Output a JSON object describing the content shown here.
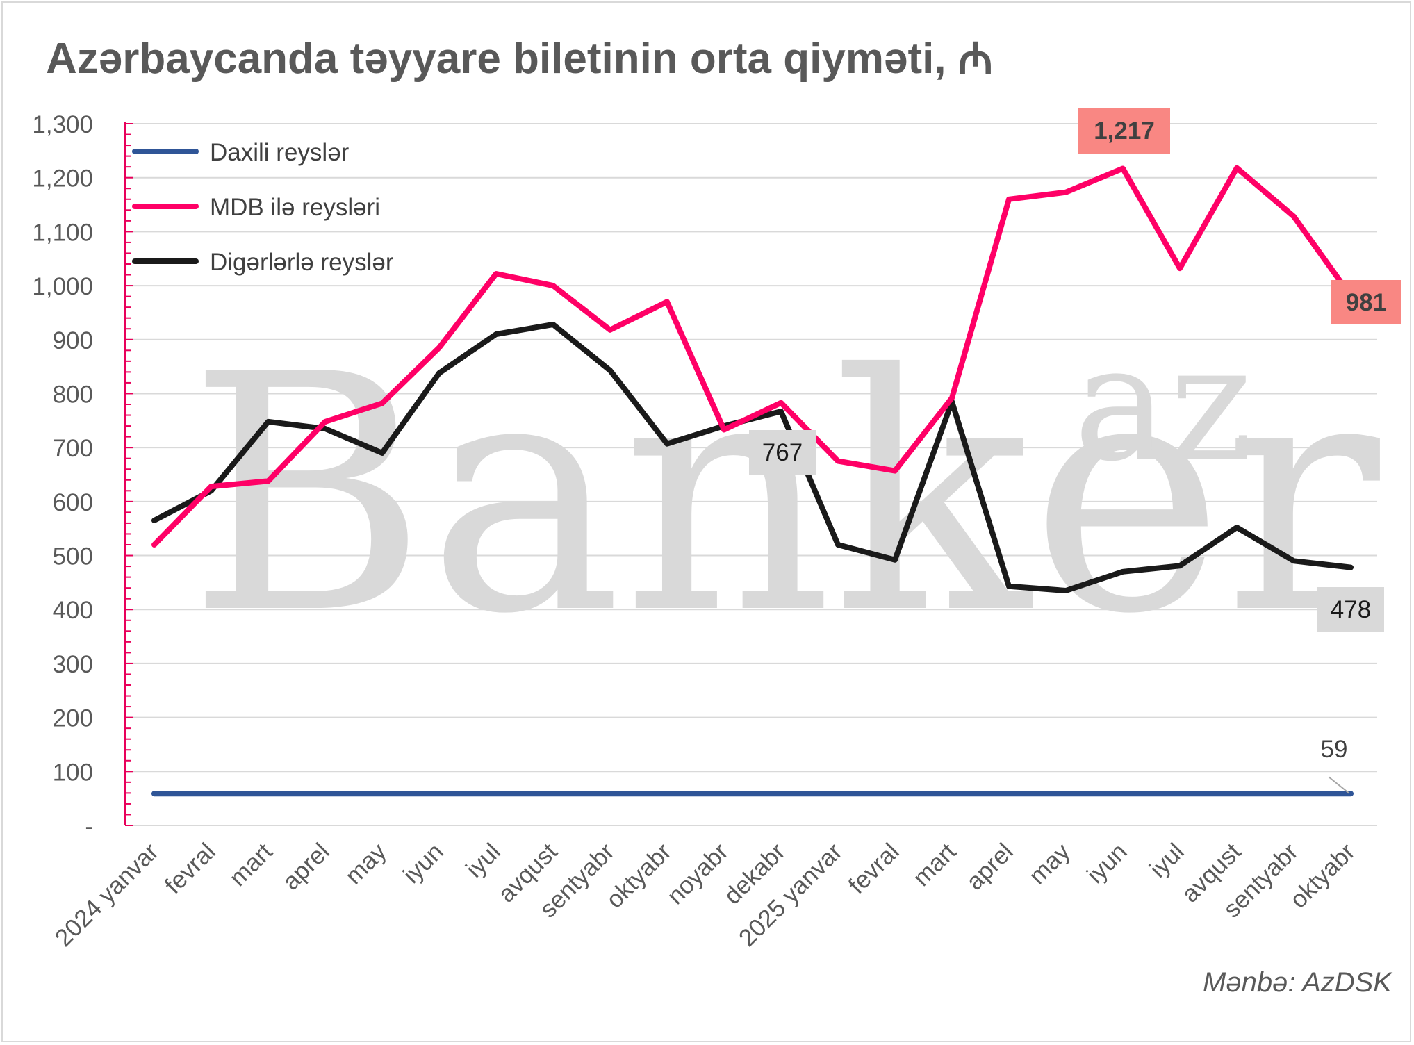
{
  "title": "Azərbaycanda təyyare biletinin orta qiyməti, ₼",
  "source": "Mənbə: AzDSK",
  "watermark": "Banker",
  "watermark_sup": "az",
  "colors": {
    "daxili": "#2f5597",
    "mdb": "#ff0066",
    "diger": "#1a1a1a",
    "axis_pink": "#e8005a",
    "grid": "#d9d9d9",
    "label_pink_bg": "#f98783",
    "label_gray_bg": "#d9d9d9"
  },
  "chart_data": {
    "type": "line",
    "categories": [
      "2024 yanvar",
      "fevral",
      "mart",
      "aprel",
      "may",
      "iyun",
      "iyul",
      "avqust",
      "sentyabr",
      "oktyabr",
      "noyabr",
      "dekabr",
      "2025 yanvar",
      "fevral",
      "mart",
      "aprel",
      "may",
      "iyun",
      "iyul",
      "avqust",
      "sentyabr",
      "oktyabr"
    ],
    "ylim": [
      0,
      1300
    ],
    "yticks": [
      0,
      100,
      200,
      300,
      400,
      500,
      600,
      700,
      800,
      900,
      1000,
      1100,
      1200,
      1300
    ],
    "ytick_labels": [
      "-",
      "100",
      "200",
      "300",
      "400",
      "500",
      "600",
      "700",
      "800",
      "900",
      "1,000",
      "1,100",
      "1,200",
      "1,300"
    ],
    "grid": true,
    "legend_position": "top-left",
    "series": [
      {
        "name": "Daxili reyslər",
        "color": "#2f5597",
        "values": [
          59,
          59,
          59,
          59,
          59,
          59,
          59,
          59,
          59,
          59,
          59,
          59,
          59,
          59,
          59,
          59,
          59,
          59,
          59,
          59,
          59,
          59
        ]
      },
      {
        "name": "MDB ilə reysləri",
        "color": "#ff0066",
        "values": [
          520,
          628,
          638,
          748,
          782,
          885,
          1022,
          1000,
          918,
          970,
          733,
          783,
          675,
          657,
          792,
          1160,
          1173,
          1217,
          1032,
          1218,
          1128,
          981
        ]
      },
      {
        "name": "Digərlərlə reyslər",
        "color": "#1a1a1a",
        "values": [
          565,
          620,
          748,
          735,
          690,
          838,
          910,
          928,
          843,
          707,
          740,
          767,
          520,
          492,
          785,
          443,
          435,
          470,
          481,
          552,
          490,
          478
        ]
      }
    ],
    "data_labels": [
      {
        "series": 1,
        "index": 17,
        "text": "1,217",
        "style": "pink"
      },
      {
        "series": 1,
        "index": 21,
        "text": "981",
        "style": "pink"
      },
      {
        "series": 2,
        "index": 11,
        "text": "767",
        "style": "gray"
      },
      {
        "series": 2,
        "index": 21,
        "text": "478",
        "style": "gray"
      },
      {
        "series": 0,
        "index": 21,
        "text": "59",
        "style": "plain"
      }
    ]
  }
}
